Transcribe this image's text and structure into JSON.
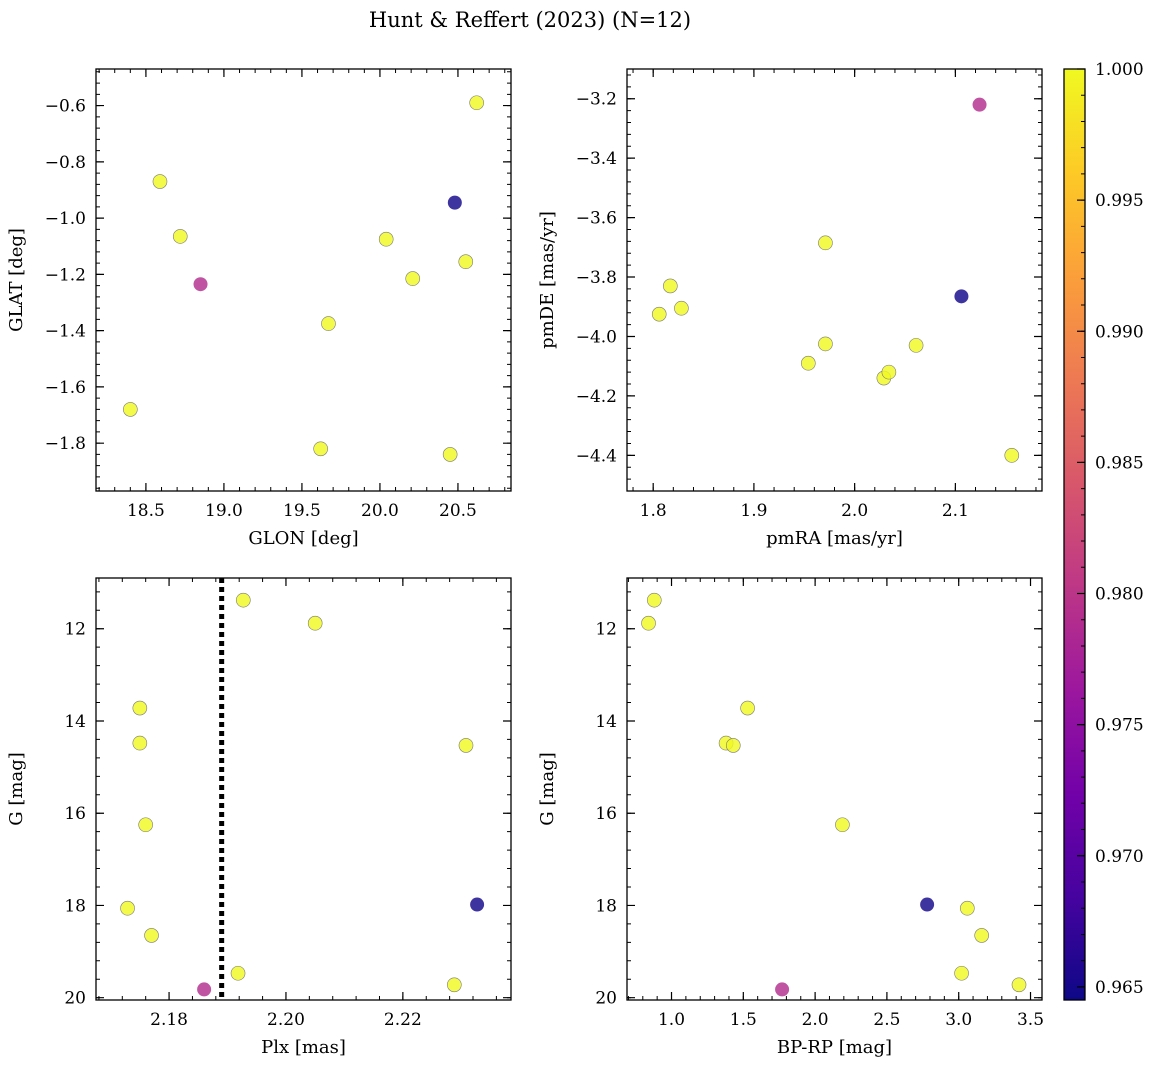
{
  "figure": {
    "title": "Hunt & Reffert (2023) (N=12)"
  },
  "colors": {
    "point_edge": "#7a7a7a",
    "vline": "#000000",
    "cmap": [
      "#0d0887",
      "#46039f",
      "#7201a8",
      "#9c179e",
      "#bd3786",
      "#d8576b",
      "#ed7953",
      "#fb9f3a",
      "#fdca26",
      "#f0f921"
    ]
  },
  "chart_data": [
    {
      "type": "scatter",
      "id": "glon-glat",
      "xlabel": "GLON [deg]",
      "ylabel": "GLAT [deg]",
      "xlim": [
        18.18,
        20.84
      ],
      "ylim": [
        -1.97,
        -0.47
      ],
      "invert_y": false,
      "xticks": [
        18.5,
        19.0,
        19.5,
        20.0,
        20.5
      ],
      "xtick_labels": [
        "18.5",
        "19.0",
        "19.5",
        "20.0",
        "20.5"
      ],
      "yticks": [
        -0.6,
        -0.8,
        -1.0,
        -1.2,
        -1.4,
        -1.6,
        -1.8
      ],
      "ytick_labels": [
        "−0.6",
        "−0.8",
        "−1.0",
        "−1.2",
        "−1.4",
        "−1.6",
        "−1.8"
      ],
      "points": [
        {
          "x": 18.4,
          "y": -1.68,
          "c": 1.0
        },
        {
          "x": 18.59,
          "y": -0.87,
          "c": 1.0
        },
        {
          "x": 18.72,
          "y": -1.065,
          "c": 1.0
        },
        {
          "x": 18.85,
          "y": -1.235,
          "c": 0.979
        },
        {
          "x": 19.62,
          "y": -1.82,
          "c": 1.0
        },
        {
          "x": 19.67,
          "y": -1.375,
          "c": 1.0
        },
        {
          "x": 20.04,
          "y": -1.075,
          "c": 1.0
        },
        {
          "x": 20.21,
          "y": -1.215,
          "c": 1.0
        },
        {
          "x": 20.45,
          "y": -1.84,
          "c": 1.0
        },
        {
          "x": 20.48,
          "y": -0.945,
          "c": 0.965
        },
        {
          "x": 20.55,
          "y": -1.155,
          "c": 1.0
        },
        {
          "x": 20.62,
          "y": -0.59,
          "c": 1.0
        }
      ]
    },
    {
      "type": "scatter",
      "id": "pm",
      "xlabel": "pmRA [mas/yr]",
      "ylabel": "pmDE [mas/yr]",
      "xlim": [
        1.774,
        2.186
      ],
      "ylim": [
        -4.52,
        -3.1
      ],
      "invert_y": false,
      "xticks": [
        1.8,
        1.9,
        2.0,
        2.1
      ],
      "xtick_labels": [
        "1.8",
        "1.9",
        "2.0",
        "2.1"
      ],
      "yticks": [
        -3.2,
        -3.4,
        -3.6,
        -3.8,
        -4.0,
        -4.2,
        -4.4
      ],
      "ytick_labels": [
        "−3.2",
        "−3.4",
        "−3.6",
        "−3.8",
        "−4.0",
        "−4.2",
        "−4.4"
      ],
      "points": [
        {
          "x": 1.806,
          "y": -3.925,
          "c": 1.0
        },
        {
          "x": 1.817,
          "y": -3.83,
          "c": 1.0
        },
        {
          "x": 1.828,
          "y": -3.905,
          "c": 1.0
        },
        {
          "x": 1.954,
          "y": -4.09,
          "c": 1.0
        },
        {
          "x": 1.971,
          "y": -3.685,
          "c": 1.0
        },
        {
          "x": 1.971,
          "y": -4.025,
          "c": 1.0
        },
        {
          "x": 2.029,
          "y": -4.14,
          "c": 1.0
        },
        {
          "x": 2.034,
          "y": -4.12,
          "c": 1.0
        },
        {
          "x": 2.061,
          "y": -4.03,
          "c": 1.0
        },
        {
          "x": 2.106,
          "y": -3.865,
          "c": 0.965
        },
        {
          "x": 2.124,
          "y": -3.22,
          "c": 0.979
        },
        {
          "x": 2.156,
          "y": -4.4,
          "c": 1.0
        }
      ]
    },
    {
      "type": "scatter",
      "id": "plx-g",
      "xlabel": "Plx [mas]",
      "ylabel": "G [mag]",
      "xlim": [
        2.1675,
        2.2385
      ],
      "ylim": [
        20.05,
        10.9
      ],
      "invert_y": true,
      "xticks": [
        2.18,
        2.2,
        2.22
      ],
      "xtick_labels": [
        "2.18",
        "2.20",
        "2.22"
      ],
      "yticks": [
        12,
        14,
        16,
        18,
        20
      ],
      "ytick_labels": [
        "12",
        "14",
        "16",
        "18",
        "20"
      ],
      "vline": {
        "x": 2.189,
        "style": "dotted"
      },
      "points": [
        {
          "x": 2.1729,
          "y": 18.06,
          "c": 1.0
        },
        {
          "x": 2.175,
          "y": 13.72,
          "c": 1.0
        },
        {
          "x": 2.175,
          "y": 14.48,
          "c": 1.0
        },
        {
          "x": 2.176,
          "y": 16.25,
          "c": 1.0
        },
        {
          "x": 2.177,
          "y": 18.65,
          "c": 1.0
        },
        {
          "x": 2.186,
          "y": 19.82,
          "c": 0.979
        },
        {
          "x": 2.1918,
          "y": 19.47,
          "c": 1.0
        },
        {
          "x": 2.1927,
          "y": 11.38,
          "c": 1.0
        },
        {
          "x": 2.205,
          "y": 11.88,
          "c": 1.0
        },
        {
          "x": 2.2288,
          "y": 19.72,
          "c": 1.0
        },
        {
          "x": 2.2308,
          "y": 14.53,
          "c": 1.0
        },
        {
          "x": 2.2327,
          "y": 17.98,
          "c": 0.965
        }
      ]
    },
    {
      "type": "scatter",
      "id": "cmd",
      "xlabel": "BP-RP [mag]",
      "ylabel": "G [mag]",
      "xlim": [
        0.69,
        3.58
      ],
      "ylim": [
        20.05,
        10.9
      ],
      "invert_y": true,
      "xticks": [
        1.0,
        1.5,
        2.0,
        2.5,
        3.0,
        3.5
      ],
      "xtick_labels": [
        "1.0",
        "1.5",
        "2.0",
        "2.5",
        "3.0",
        "3.5"
      ],
      "yticks": [
        12,
        14,
        16,
        18,
        20
      ],
      "ytick_labels": [
        "12",
        "14",
        "16",
        "18",
        "20"
      ],
      "points": [
        {
          "x": 0.84,
          "y": 11.88,
          "c": 1.0
        },
        {
          "x": 0.88,
          "y": 11.38,
          "c": 1.0
        },
        {
          "x": 1.38,
          "y": 14.48,
          "c": 1.0
        },
        {
          "x": 1.43,
          "y": 14.53,
          "c": 1.0
        },
        {
          "x": 1.53,
          "y": 13.72,
          "c": 1.0
        },
        {
          "x": 1.77,
          "y": 19.82,
          "c": 0.979
        },
        {
          "x": 2.19,
          "y": 16.25,
          "c": 1.0
        },
        {
          "x": 2.78,
          "y": 17.98,
          "c": 0.965
        },
        {
          "x": 3.02,
          "y": 19.47,
          "c": 1.0
        },
        {
          "x": 3.06,
          "y": 18.06,
          "c": 1.0
        },
        {
          "x": 3.16,
          "y": 18.65,
          "c": 1.0
        },
        {
          "x": 3.42,
          "y": 19.72,
          "c": 1.0
        }
      ]
    }
  ],
  "colorbar": {
    "vmin": 0.9645,
    "vmax": 1.0,
    "ticks": [
      0.965,
      0.97,
      0.975,
      0.98,
      0.985,
      0.99,
      0.995,
      1.0
    ],
    "tick_labels": [
      "0.965",
      "0.970",
      "0.975",
      "0.980",
      "0.985",
      "0.990",
      "0.995",
      "1.000"
    ]
  }
}
